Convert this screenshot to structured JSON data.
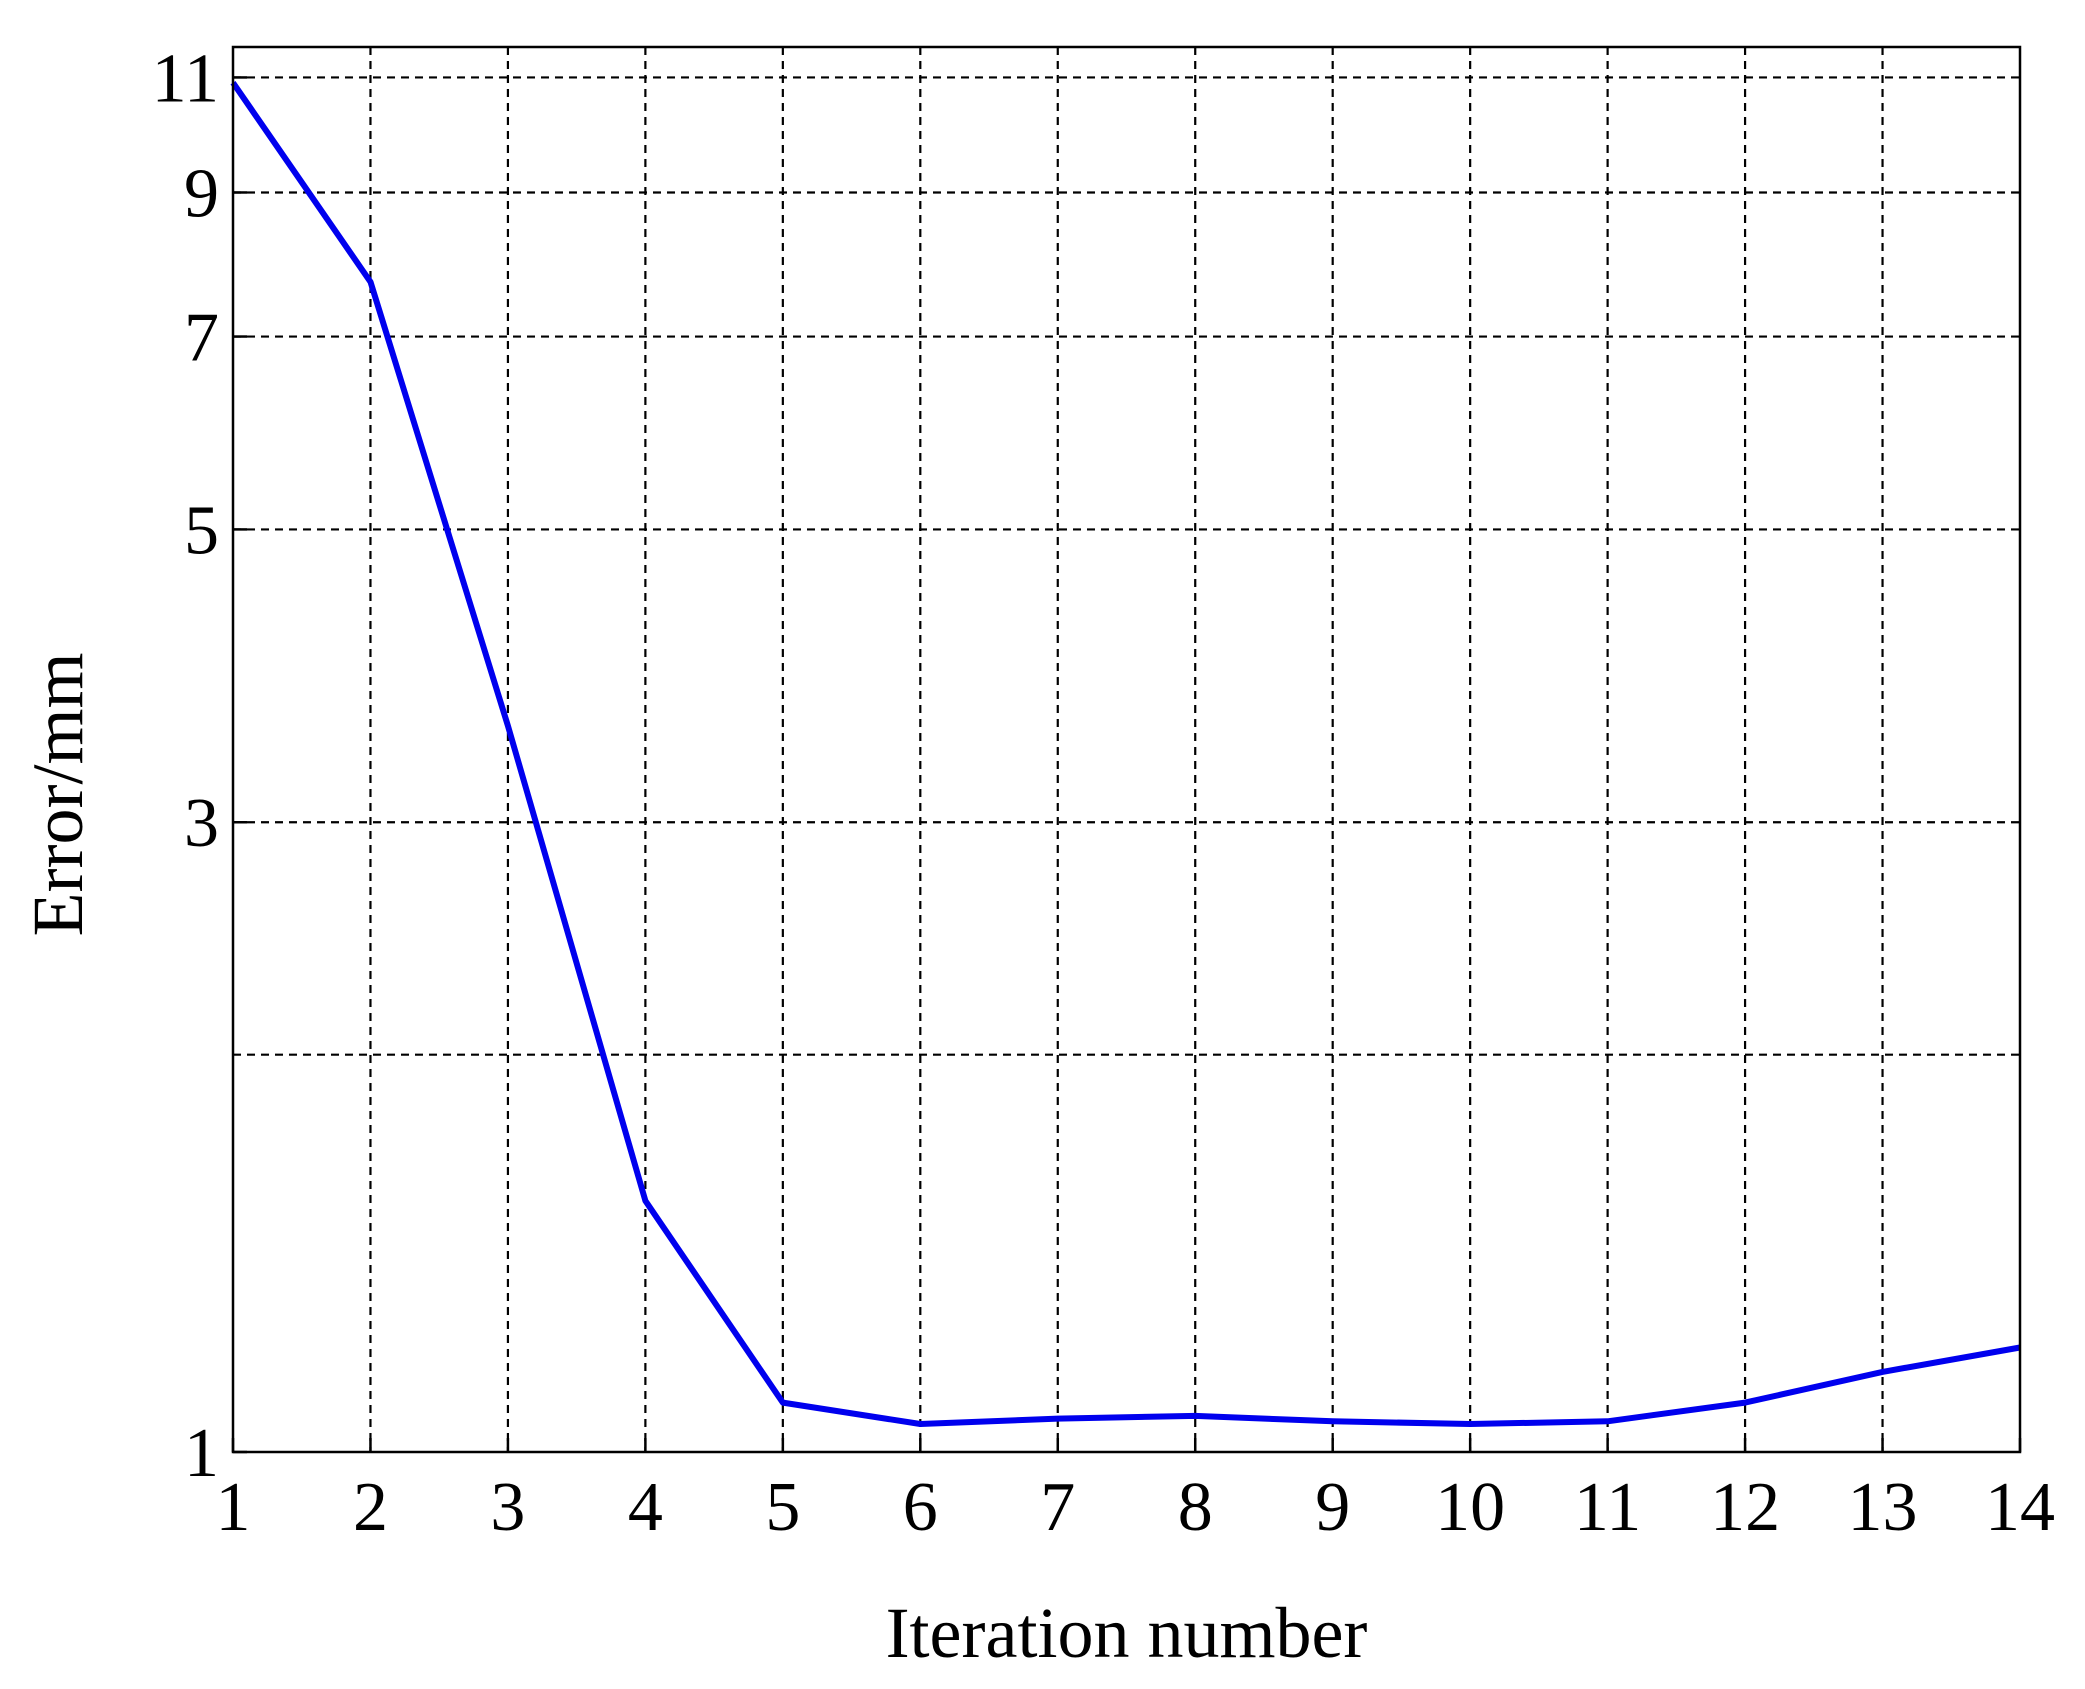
{
  "chart_data": {
    "type": "line",
    "xlabel": "Iteration number",
    "ylabel": "Error/mm",
    "xlim": [
      1,
      14
    ],
    "ylim": [
      1,
      11.6
    ],
    "yscale": "log",
    "grid": true,
    "x_ticks": [
      "1",
      "2",
      "3",
      "4",
      "5",
      "6",
      "7",
      "8",
      "9",
      "10",
      "11",
      "12",
      "13",
      "14"
    ],
    "y_ticks": [
      "1",
      "3",
      "5",
      "7",
      "9",
      "11"
    ],
    "y_gridlines": [
      2,
      3,
      5,
      7,
      9,
      11
    ],
    "series": [
      {
        "color": "#0000ee",
        "x": [
          1,
          2,
          3,
          4,
          5,
          6,
          7,
          8,
          9,
          10,
          11,
          12,
          13,
          14
        ],
        "y": [
          10.9,
          7.7,
          3.55,
          1.55,
          1.09,
          1.05,
          1.06,
          1.065,
          1.055,
          1.05,
          1.055,
          1.09,
          1.15,
          1.2
        ]
      }
    ]
  }
}
